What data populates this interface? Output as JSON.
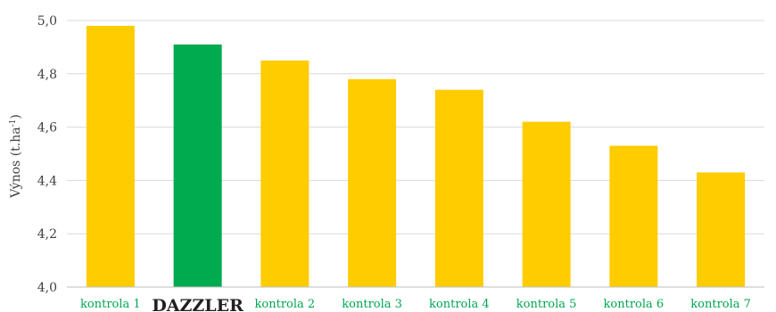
{
  "chart_data": {
    "type": "bar",
    "ylabel": "Výnos (t.ha",
    "ylabel_sup": "-1",
    "ylabel_close": ")",
    "ylim": [
      4.0,
      5.0
    ],
    "yticks": [
      "4,0",
      "4,2",
      "4,4",
      "4,6",
      "4,8",
      "5,0"
    ],
    "ytick_values": [
      4.0,
      4.2,
      4.4,
      4.6,
      4.8,
      5.0
    ],
    "grid": true,
    "categories": [
      "kontrola 1",
      "DAZZLER",
      "kontrola 2",
      "kontrola 3",
      "kontrola 4",
      "kontrola 5",
      "kontrola 6",
      "kontrola 7"
    ],
    "values": [
      4.98,
      4.91,
      4.85,
      4.78,
      4.74,
      4.62,
      4.53,
      4.43
    ],
    "highlight_index": 1,
    "colors": {
      "bar": "#FFCC00",
      "highlight_bar": "#00AA4F",
      "category_label": "#00A651",
      "highlight_label": "#231F20"
    }
  }
}
